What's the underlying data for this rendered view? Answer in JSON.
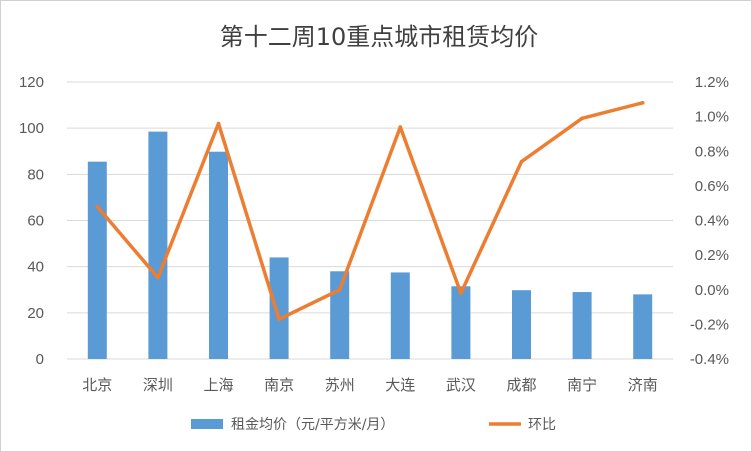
{
  "chart_data": {
    "type": "bar",
    "title": "第十二周10重点城市租赁均价",
    "categories": [
      "北京",
      "深圳",
      "上海",
      "南京",
      "苏州",
      "大连",
      "武汉",
      "成都",
      "南宁",
      "济南"
    ],
    "series": [
      {
        "name": "租金均价（元/平方米/月）",
        "type": "bar",
        "axis": "left",
        "color": "#5b9bd5",
        "values": [
          85.5,
          98.5,
          89.8,
          44.0,
          38.0,
          37.5,
          31.5,
          29.8,
          29.0,
          28.0
        ]
      },
      {
        "name": "环比",
        "type": "line",
        "axis": "right",
        "color": "#ed7d31",
        "values": [
          0.0048,
          0.0007,
          0.0096,
          -0.0017,
          0.0,
          0.0094,
          -0.0002,
          0.0074,
          0.0099,
          0.0108
        ]
      }
    ],
    "y_left": {
      "min": 0,
      "max": 120,
      "ticks": [
        "0",
        "20",
        "40",
        "60",
        "80",
        "100",
        "120"
      ]
    },
    "y_right": {
      "min": -0.004,
      "max": 0.012,
      "ticks": [
        "-0.4%",
        "-0.2%",
        "0.0%",
        "0.2%",
        "0.4%",
        "0.6%",
        "0.8%",
        "1.0%",
        "1.2%"
      ]
    },
    "grid": true,
    "legend_position": "bottom"
  }
}
